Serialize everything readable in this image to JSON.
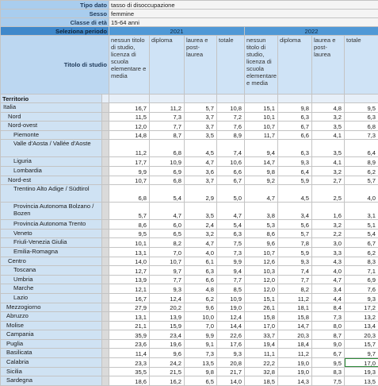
{
  "header": {
    "rows": [
      [
        "Tipo dato",
        "tasso di disoccupazione"
      ],
      [
        "Sesso",
        "femmine"
      ],
      [
        "Classe di età",
        "15-64 anni"
      ]
    ]
  },
  "period": {
    "label": "Seleziona periodo",
    "years": [
      "2021",
      "2022"
    ]
  },
  "columns": {
    "label": "Titolo di studio",
    "names": [
      "nessun titolo di studio, licenza di scuola elementare e media",
      "diploma",
      "laurea e post-laurea",
      "totale"
    ]
  },
  "table": {
    "label": "Territorio",
    "rows": [
      {
        "name": "Italia",
        "values": [
          "16,7",
          "11,2",
          "5,7",
          "10,8",
          "15,1",
          "9,8",
          "4,8",
          "9,5"
        ]
      },
      {
        "name": "Nord",
        "values": [
          "11,5",
          "7,3",
          "3,7",
          "7,2",
          "10,1",
          "6,3",
          "3,2",
          "6,3"
        ]
      },
      {
        "name": "Nord-ovest",
        "values": [
          "12,0",
          "7,7",
          "3,7",
          "7,6",
          "10,7",
          "6,7",
          "3,5",
          "6,8"
        ]
      },
      {
        "name": "Piemonte",
        "values": [
          "14,8",
          "8,7",
          "3,5",
          "8,9",
          "11,7",
          "6,6",
          "4,1",
          "7,3"
        ]
      },
      {
        "name": "Valle d'Aosta / Vallée d'Aoste",
        "values": [
          "11,2",
          "6,8",
          "4,5",
          "7,4",
          "9,4",
          "6,3",
          "3,5",
          "6,4"
        ]
      },
      {
        "name": "Liguria",
        "values": [
          "17,7",
          "10,9",
          "4,7",
          "10,6",
          "14,7",
          "9,3",
          "4,1",
          "8,9"
        ]
      },
      {
        "name": "Lombardia",
        "values": [
          "9,9",
          "6,9",
          "3,6",
          "6,6",
          "9,8",
          "6,4",
          "3,2",
          "6,2"
        ]
      },
      {
        "name": "Nord-est",
        "values": [
          "10,7",
          "6,8",
          "3,7",
          "6,7",
          "9,2",
          "5,9",
          "2,7",
          "5,7"
        ]
      },
      {
        "name": "Trentino Alto Adige / Südtirol",
        "values": [
          "6,8",
          "5,4",
          "2,9",
          "5,0",
          "4,7",
          "4,5",
          "2,5",
          "4,0"
        ]
      },
      {
        "name": "Provincia Autonoma Bolzano / Bozen",
        "values": [
          "5,7",
          "4,7",
          "3,5",
          "4,7",
          "3,8",
          "3,4",
          "1,6",
          "3,1"
        ]
      },
      {
        "name": "Provincia Autonoma Trento",
        "values": [
          "8,6",
          "6,0",
          "2,4",
          "5,4",
          "5,3",
          "5,6",
          "3,2",
          "5,1"
        ]
      },
      {
        "name": "Veneto",
        "values": [
          "9,5",
          "6,5",
          "3,2",
          "6,3",
          "8,6",
          "5,7",
          "2,2",
          "5,4"
        ]
      },
      {
        "name": "Friuli-Venezia Giulia",
        "values": [
          "10,1",
          "8,2",
          "4,7",
          "7,5",
          "9,6",
          "7,8",
          "3,0",
          "6,7"
        ]
      },
      {
        "name": "Emilia-Romagna",
        "values": [
          "13,1",
          "7,0",
          "4,0",
          "7,3",
          "10,7",
          "5,9",
          "3,3",
          "6,2"
        ]
      },
      {
        "name": "Centro",
        "values": [
          "14,0",
          "10,7",
          "6,1",
          "9,9",
          "12,6",
          "9,3",
          "4,3",
          "8,3"
        ]
      },
      {
        "name": "Toscana",
        "values": [
          "12,7",
          "9,7",
          "6,3",
          "9,4",
          "10,3",
          "7,4",
          "4,0",
          "7,1"
        ]
      },
      {
        "name": "Umbria",
        "values": [
          "13,9",
          "7,7",
          "6,6",
          "7,7",
          "12,0",
          "7,7",
          "4,7",
          "6,9"
        ]
      },
      {
        "name": "Marche",
        "values": [
          "12,1",
          "9,3",
          "4,8",
          "8,5",
          "12,0",
          "8,2",
          "3,4",
          "7,6"
        ]
      },
      {
        "name": "Lazio",
        "values": [
          "16,7",
          "12,4",
          "6,2",
          "10,9",
          "15,1",
          "11,2",
          "4,4",
          "9,3"
        ]
      },
      {
        "name": "Mezzogiorno",
        "values": [
          "27,9",
          "20,2",
          "9,6",
          "19,0",
          "26,1",
          "18,1",
          "8,4",
          "17,2"
        ]
      },
      {
        "name": "Abruzzo",
        "values": [
          "13,1",
          "13,9",
          "10,0",
          "12,4",
          "15,8",
          "15,8",
          "7,3",
          "13,2"
        ]
      },
      {
        "name": "Molise",
        "values": [
          "21,1",
          "15,9",
          "7,0",
          "14,4",
          "17,0",
          "14,7",
          "8,0",
          "13,4"
        ]
      },
      {
        "name": "Campania",
        "values": [
          "35,9",
          "23,4",
          "9,9",
          "22,6",
          "33,7",
          "20,3",
          "8,7",
          "20,3"
        ]
      },
      {
        "name": "Puglia",
        "values": [
          "23,6",
          "19,6",
          "9,1",
          "17,6",
          "19,4",
          "18,4",
          "9,0",
          "15,7"
        ]
      },
      {
        "name": "Basilicata",
        "values": [
          "11,4",
          "9,6",
          "7,3",
          "9,3",
          "11,1",
          "11,2",
          "6,7",
          "9,7"
        ]
      },
      {
        "name": "Calabria",
        "values": [
          "23,3",
          "24,2",
          "13,5",
          "20,8",
          "22,2",
          "19,0",
          "9,5",
          "17,0"
        ]
      },
      {
        "name": "Sicilia",
        "values": [
          "35,5",
          "21,5",
          "9,8",
          "21,7",
          "32,8",
          "19,0",
          "8,3",
          "19,3"
        ]
      },
      {
        "name": "Sardegna",
        "values": [
          "18,6",
          "16,2",
          "6,5",
          "14,0",
          "18,5",
          "14,3",
          "7,5",
          "13,5"
        ]
      }
    ]
  }
}
